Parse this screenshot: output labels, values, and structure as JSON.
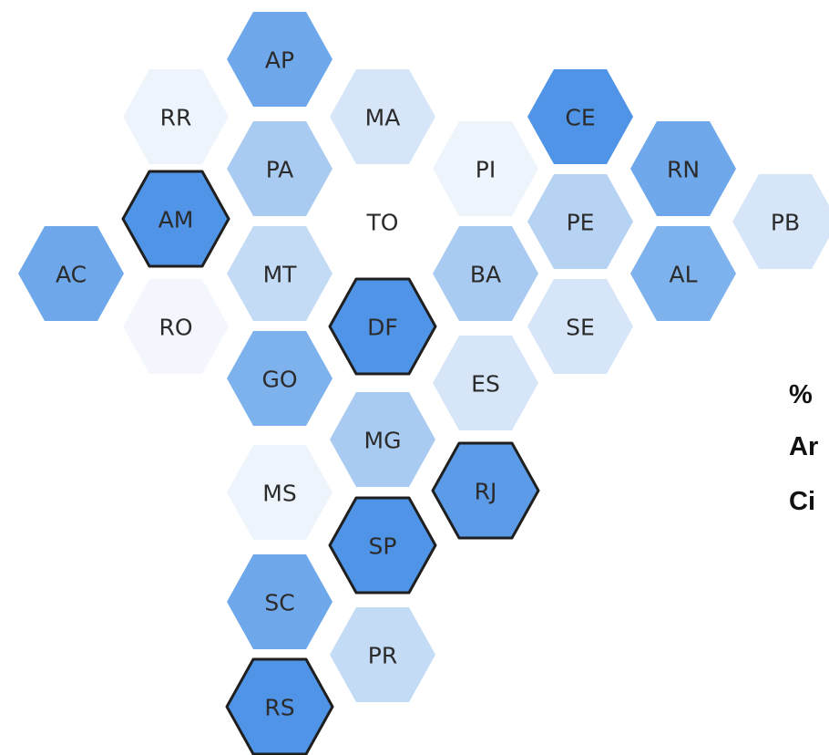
{
  "map": {
    "hexes": [
      {
        "label": "AP",
        "color": "#6fa8ea",
        "outlined": false
      },
      {
        "label": "RR",
        "color": "#eef4fc",
        "outlined": false
      },
      {
        "label": "MA",
        "color": "#d6e6f8",
        "outlined": false
      },
      {
        "label": "PA",
        "color": "#a9cbf1",
        "outlined": false
      },
      {
        "label": "AM",
        "color": "#4f94e6",
        "outlined": true
      },
      {
        "label": "AC",
        "color": "#6fa8ea",
        "outlined": false
      },
      {
        "label": "RO",
        "color": "#f3f7fd",
        "outlined": false
      },
      {
        "label": "MT",
        "color": "#c3dbf5",
        "outlined": false
      },
      {
        "label": "TO",
        "color": "#ffffff",
        "outlined": false
      },
      {
        "label": "DF",
        "color": "#4f94e6",
        "outlined": true
      },
      {
        "label": "GO",
        "color": "#7db2ec",
        "outlined": false
      },
      {
        "label": "MS",
        "color": "#eef4fc",
        "outlined": false
      },
      {
        "label": "MG",
        "color": "#a9cbf1",
        "outlined": false
      },
      {
        "label": "SP",
        "color": "#4f94e6",
        "outlined": true
      },
      {
        "label": "SC",
        "color": "#6fa8ea",
        "outlined": false
      },
      {
        "label": "PR",
        "color": "#c3dbf5",
        "outlined": false
      },
      {
        "label": "RS",
        "color": "#4f94e6",
        "outlined": true
      },
      {
        "label": "PI",
        "color": "#eef4fc",
        "outlined": false
      },
      {
        "label": "BA",
        "color": "#a9cbf1",
        "outlined": false
      },
      {
        "label": "ES",
        "color": "#d6e6f8",
        "outlined": false
      },
      {
        "label": "RJ",
        "color": "#5b9be8",
        "outlined": true
      },
      {
        "label": "CE",
        "color": "#4f94e6",
        "outlined": false
      },
      {
        "label": "PE",
        "color": "#b7d3f3",
        "outlined": false
      },
      {
        "label": "SE",
        "color": "#d6e6f8",
        "outlined": false
      },
      {
        "label": "RN",
        "color": "#6fa8ea",
        "outlined": false
      },
      {
        "label": "AL",
        "color": "#7db2ec",
        "outlined": false
      },
      {
        "label": "PB",
        "color": "#d6e6f8",
        "outlined": false
      }
    ],
    "legend_lines": [
      "%",
      "Ar",
      "Ci"
    ]
  }
}
